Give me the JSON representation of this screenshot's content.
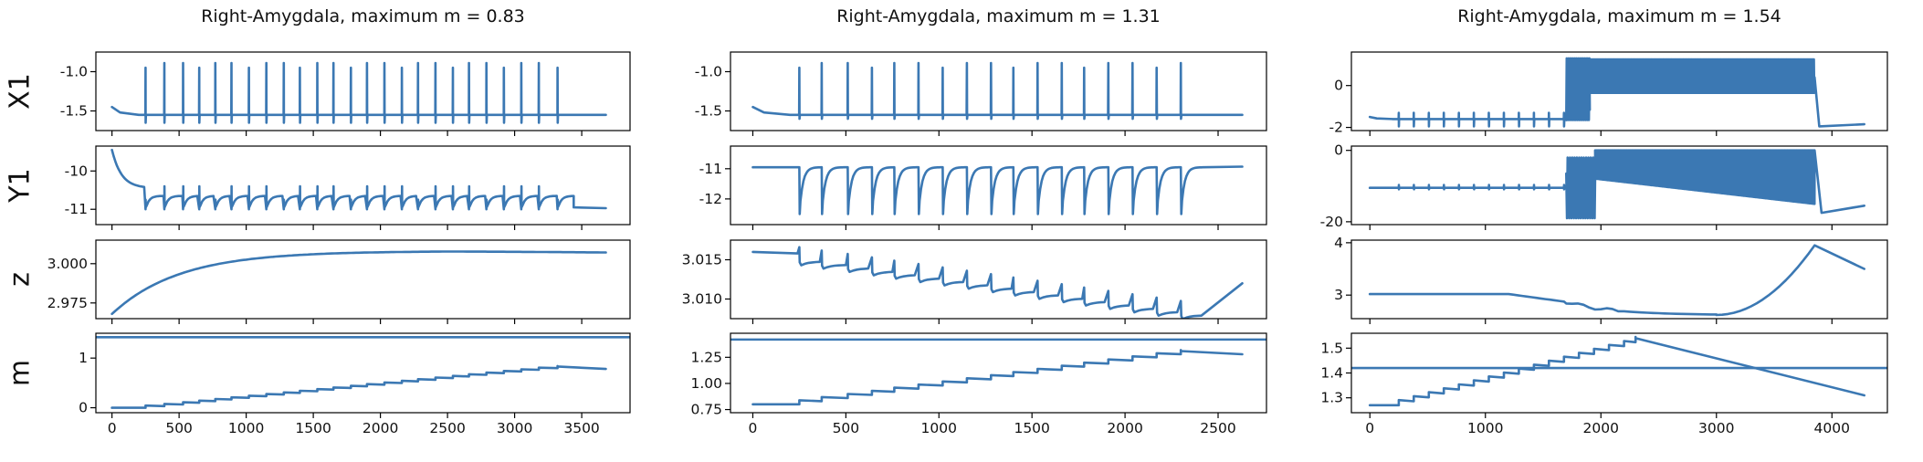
{
  "figure": {
    "line_color": "#3b78b3",
    "row_labels": [
      "X1",
      "Y1",
      "z",
      "m"
    ]
  },
  "chart_data": [
    {
      "type": "line",
      "title": "Right-Amygdala, maximum m = 0.83",
      "xlim": [
        -120,
        3860
      ],
      "xticks": [
        0,
        500,
        1000,
        1500,
        2000,
        2500,
        3000,
        3500
      ],
      "xtick_labels": [
        "0",
        "500",
        "1000",
        "1500",
        "2000",
        "2500",
        "3000",
        "3500"
      ],
      "t_end": 3680,
      "bursts": [
        250,
        390,
        530,
        650,
        770,
        890,
        1020,
        1150,
        1280,
        1400,
        1530,
        1650,
        1780,
        1900,
        2030,
        2160,
        2280,
        2410,
        2540,
        2660,
        2790,
        2920,
        3050,
        3180,
        3320
      ],
      "threshold": 1.42,
      "panels": {
        "X1": {
          "ylim": [
            -1.75,
            -0.75
          ],
          "yticks": [
            -1.0,
            -1.5
          ],
          "ytick_labels": [
            "-1.0",
            "-1.5"
          ],
          "baseline": -1.55,
          "spike_top": -0.95,
          "spike_bottom": -1.65
        },
        "Y1": {
          "ylim": [
            -11.4,
            -9.35
          ],
          "yticks": [
            -10,
            -11
          ],
          "ytick_labels": [
            "-10",
            "-11"
          ],
          "start": -9.45,
          "baseline": -11.0,
          "spike_top": -10.4,
          "spike_bottom": -11.0
        },
        "z": {
          "ylim": [
            2.965,
            3.015
          ],
          "yticks": [
            3.0,
            2.975
          ],
          "ytick_labels": [
            "3.000",
            "2.975"
          ],
          "start": 2.968,
          "plateau": 3.008
        },
        "m": {
          "ylim": [
            -0.1,
            1.5
          ],
          "yticks": [
            1,
            0
          ],
          "ytick_labels": [
            "1",
            "0"
          ],
          "start": 0.0,
          "max": 0.83
        }
      }
    },
    {
      "type": "line",
      "title": "Right-Amygdala, maximum m = 1.31",
      "xlim": [
        -120,
        2760
      ],
      "xticks": [
        0,
        500,
        1000,
        1500,
        2000,
        2500
      ],
      "xtick_labels": [
        "0",
        "500",
        "1000",
        "1500",
        "2000",
        "2500"
      ],
      "t_end": 2630,
      "bursts": [
        250,
        370,
        510,
        640,
        760,
        890,
        1020,
        1150,
        1280,
        1400,
        1530,
        1660,
        1780,
        1910,
        2040,
        2170,
        2300
      ],
      "threshold": 1.42,
      "panels": {
        "X1": {
          "ylim": [
            -1.75,
            -0.75
          ],
          "yticks": [
            -1.0,
            -1.5
          ],
          "ytick_labels": [
            "-1.0",
            "-1.5"
          ],
          "baseline": -1.55,
          "spike_top": -0.95,
          "spike_bottom": -1.6
        },
        "Y1": {
          "ylim": [
            -12.85,
            -10.25
          ],
          "yticks": [
            -11,
            -12
          ],
          "ytick_labels": [
            "-11",
            "-12"
          ],
          "baseline": -10.95,
          "spike_top": -10.95,
          "spike_bottom": -12.5
        },
        "z": {
          "ylim": [
            3.0075,
            3.0175
          ],
          "yticks": [
            3.015,
            3.01
          ],
          "ytick_labels": [
            "3.015",
            "3.010"
          ],
          "start": 3.016,
          "min": 3.0083,
          "end": 3.012
        },
        "m": {
          "ylim": [
            0.72,
            1.48
          ],
          "yticks": [
            1.25,
            1.0,
            0.75
          ],
          "ytick_labels": [
            "1.25",
            "1.00",
            "0.75"
          ],
          "start": 0.8,
          "max": 1.31
        }
      }
    },
    {
      "type": "line",
      "title": "Right-Amygdala, maximum m = 1.54",
      "xlim": [
        -160,
        4480
      ],
      "xticks": [
        0,
        1000,
        2000,
        3000,
        4000
      ],
      "xtick_labels": [
        "0",
        "1000",
        "2000",
        "3000",
        "4000"
      ],
      "t_end": 4280,
      "bursts": [
        250,
        380,
        510,
        640,
        770,
        900,
        1030,
        1160,
        1290,
        1420,
        1550,
        1680,
        1810,
        1940,
        2070,
        2200,
        2300
      ],
      "seizure": [
        1700,
        3850
      ],
      "threshold": 1.42,
      "panels": {
        "X1": {
          "ylim": [
            -2.15,
            1.6
          ],
          "yticks": [
            0,
            -2
          ],
          "ytick_labels": [
            "0",
            "-2"
          ],
          "baseline": -1.6,
          "spike_top": 1.3,
          "spike_bottom": -1.95,
          "end": -1.85
        },
        "Y1": {
          "ylim": [
            -20.8,
            1.2
          ],
          "yticks": [
            0,
            -20
          ],
          "ytick_labels": [
            "0",
            "-20"
          ],
          "baseline": -10.5,
          "spike_top": 0.0,
          "spike_bottom": -19.0,
          "end": -15.5
        },
        "z": {
          "ylim": [
            2.55,
            4.05
          ],
          "yticks": [
            4,
            3
          ],
          "ytick_labels": [
            "4",
            "3"
          ],
          "start": 3.02,
          "min": 2.62,
          "max": 3.95,
          "end": 3.5
        },
        "m": {
          "ylim": [
            1.24,
            1.56
          ],
          "yticks": [
            1.5,
            1.4,
            1.3
          ],
          "ytick_labels": [
            "1.5",
            "1.4",
            "1.3"
          ],
          "start": 1.27,
          "max": 1.54,
          "end": 1.31
        }
      }
    }
  ]
}
